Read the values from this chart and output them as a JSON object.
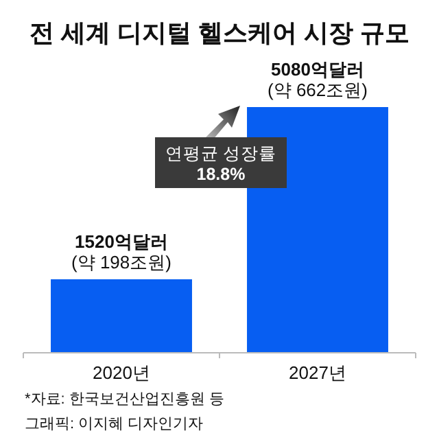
{
  "chart_data": {
    "type": "bar",
    "title": "전 세계 디지털 헬스케어 시장 규모",
    "categories": [
      "2020년",
      "2027년"
    ],
    "values": [
      1520,
      5080
    ],
    "value_labels": [
      "1520억달러\n(약 198조원)",
      "5080억달러\n(약 662조원)"
    ],
    "color": "#075ef2",
    "annotations": [
      "연평균 성장률\n18.8%",
      "*자료: 한국보건산업진흥원 등",
      "그래픽: 이지혜 디자인기자"
    ]
  }
}
